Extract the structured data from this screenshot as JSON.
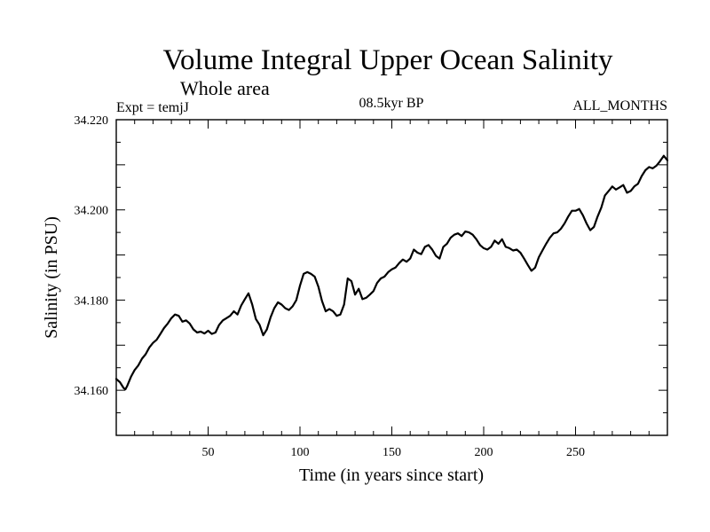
{
  "chart_data": {
    "type": "line",
    "title": "Volume Integral Upper Ocean Salinity",
    "subtitle": "Whole area",
    "left_note": "Expt = temjJ",
    "center_note": "08.5kyr BP",
    "right_note": "ALL_MONTHS",
    "xlabel": "Time (in years since start)",
    "ylabel": "Salinity (in PSU)",
    "xlim": [
      0,
      300
    ],
    "ylim": [
      34.15,
      34.22
    ],
    "x_ticks": [
      50,
      100,
      150,
      200,
      250
    ],
    "x_tick_labels": [
      "50",
      "100",
      "150",
      "200",
      "250"
    ],
    "y_ticks": [
      34.16,
      34.18,
      34.2,
      34.22
    ],
    "y_tick_labels": [
      "34.160",
      "34.180",
      "34.200",
      "34.220"
    ],
    "series": [
      {
        "name": "Salinity",
        "x": [
          0,
          2,
          4,
          5,
          6,
          8,
          10,
          12,
          14,
          16,
          18,
          20,
          22,
          24,
          26,
          28,
          30,
          32,
          34,
          36,
          38,
          40,
          42,
          44,
          46,
          48,
          50,
          52,
          54,
          56,
          58,
          60,
          62,
          64,
          66,
          68,
          70,
          72,
          74,
          76,
          78,
          80,
          82,
          84,
          86,
          88,
          90,
          92,
          94,
          96,
          98,
          100,
          102,
          104,
          106,
          108,
          110,
          112,
          114,
          116,
          118,
          120,
          122,
          124,
          126,
          128,
          130,
          132,
          134,
          136,
          138,
          140,
          142,
          144,
          146,
          148,
          150,
          152,
          154,
          156,
          158,
          160,
          162,
          164,
          166,
          168,
          170,
          172,
          174,
          176,
          178,
          180,
          182,
          184,
          186,
          188,
          190,
          192,
          194,
          196,
          198,
          200,
          202,
          204,
          206,
          208,
          210,
          212,
          214,
          216,
          218,
          220,
          222,
          224,
          226,
          228,
          230,
          232,
          234,
          236,
          238,
          240,
          242,
          244,
          246,
          248,
          250,
          252,
          254,
          256,
          258,
          260,
          262,
          264,
          266,
          268,
          270,
          272,
          274,
          276,
          278,
          280,
          282,
          284,
          286,
          288,
          290,
          292,
          294,
          296,
          298,
          300
        ],
        "values": [
          34.1625,
          34.1618,
          34.1605,
          34.1602,
          34.161,
          34.163,
          34.1645,
          34.1655,
          34.167,
          34.168,
          34.1695,
          34.1705,
          34.1712,
          34.1725,
          34.1738,
          34.1748,
          34.176,
          34.1768,
          34.1765,
          34.1752,
          34.1755,
          34.1748,
          34.1735,
          34.1728,
          34.173,
          34.1726,
          34.1732,
          34.1725,
          34.1728,
          34.1745,
          34.1755,
          34.176,
          34.1765,
          34.1775,
          34.1768,
          34.1788,
          34.1802,
          34.1815,
          34.179,
          34.1758,
          34.1745,
          34.1722,
          34.1735,
          34.1762,
          34.1782,
          34.1795,
          34.179,
          34.1782,
          34.1778,
          34.1786,
          34.18,
          34.1832,
          34.1858,
          34.1862,
          34.1858,
          34.1852,
          34.183,
          34.1798,
          34.1775,
          34.178,
          34.1775,
          34.1765,
          34.1768,
          34.179,
          34.1848,
          34.1842,
          34.1812,
          34.1825,
          34.1802,
          34.1805,
          34.1812,
          34.182,
          34.1838,
          34.1848,
          34.1852,
          34.1862,
          34.1868,
          34.1872,
          34.1882,
          34.189,
          34.1885,
          34.1892,
          34.1912,
          34.1905,
          34.1902,
          34.1918,
          34.1922,
          34.1912,
          34.1898,
          34.1892,
          34.1918,
          34.1925,
          34.1938,
          34.1945,
          34.1948,
          34.1942,
          34.1952,
          34.195,
          34.1945,
          34.1935,
          34.1922,
          34.1915,
          34.1912,
          34.1918,
          34.1932,
          34.1925,
          34.1935,
          34.1918,
          34.1915,
          34.191,
          34.1912,
          34.1905,
          34.1892,
          34.1878,
          34.1865,
          34.1872,
          34.1895,
          34.191,
          34.1925,
          34.1938,
          34.1948,
          34.195,
          34.1958,
          34.197,
          34.1985,
          34.1998,
          34.1998,
          34.2002,
          34.1988,
          34.197,
          34.1955,
          34.1962,
          34.1985,
          34.2005,
          34.2032,
          34.2042,
          34.2052,
          34.2045,
          34.205,
          34.2055,
          34.2038,
          34.2042,
          34.2052,
          34.2058,
          34.2075,
          34.2088,
          34.2095,
          34.2092,
          34.2098,
          34.2108,
          34.212,
          34.211
        ]
      }
    ]
  }
}
